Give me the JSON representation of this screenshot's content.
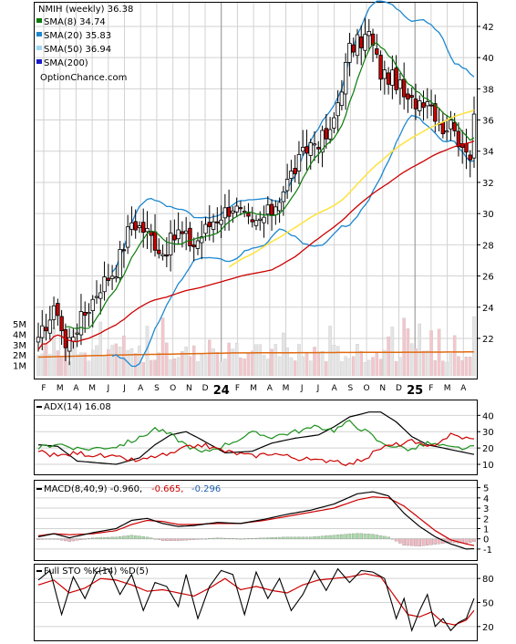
{
  "colors": {
    "bull": "#ffffff",
    "bear": "#cc0000",
    "up_volume": "#e4e4e4",
    "down_volume": "#f4c6cc",
    "sma8": "#0b7a0b",
    "sma20": "#1e88d0",
    "sma50": "#ffe23c",
    "sma200": "#cc0000",
    "vol_sma": "#e06a10",
    "adx": "#000000",
    "plus_di": "#1a8f1a",
    "minus_di": "#cc0000",
    "macd": "#000000",
    "macd_signal": "#cc0000",
    "hist_pos": "#a8dca8",
    "hist_neg": "#f5b8c2",
    "sto_k": "#000000",
    "sto_d": "#cc0000",
    "grid": "#d2d2d2",
    "year_line": "#8c8c8c"
  },
  "chart_data": [
    {
      "type": "candlestick",
      "panel": "price",
      "title": "NMIH (weekly) 36.38",
      "credit": "OptionChance.com",
      "legend": [
        {
          "label": "SMA(8) 34.74",
          "color_key": "sma8"
        },
        {
          "label": "SMA(20) 35.83",
          "color_key": "sma20"
        },
        {
          "label": "SMA(50) 36.94",
          "color_key": "sma50"
        },
        {
          "label": "SMA(200)",
          "color_key": "sma200"
        }
      ],
      "ylim": [
        19.6,
        43.4
      ],
      "yticks": [
        "22",
        "24",
        "26",
        "28",
        "30",
        "32",
        "34",
        "36",
        "38",
        "40",
        "42"
      ],
      "ytick_values": [
        22,
        24,
        26,
        28,
        30,
        32,
        34,
        36,
        38,
        40,
        42
      ],
      "x_axis_labels": [
        "F",
        "M",
        "A",
        "M",
        "J",
        "J",
        "A",
        "S",
        "O",
        "N",
        "D",
        "24",
        "F",
        "M",
        "A",
        "M",
        "J",
        "J",
        "A",
        "S",
        "O",
        "N",
        "D",
        "25",
        "F",
        "M",
        "A"
      ],
      "price_waypoints": [
        [
          0,
          21.6
        ],
        [
          2,
          23.0
        ],
        [
          5,
          23.9
        ],
        [
          7,
          21.4
        ],
        [
          9,
          22.4
        ],
        [
          12,
          23.6
        ],
        [
          16,
          25.4
        ],
        [
          20,
          26.5
        ],
        [
          24,
          29.5
        ],
        [
          28,
          28.8
        ],
        [
          32,
          27.5
        ],
        [
          36,
          28.8
        ],
        [
          40,
          28.0
        ],
        [
          45,
          29.6
        ],
        [
          50,
          30.5
        ],
        [
          55,
          29.1
        ],
        [
          60,
          30.2
        ],
        [
          65,
          32.5
        ],
        [
          70,
          34.5
        ],
        [
          75,
          35.0
        ],
        [
          80,
          40.5
        ],
        [
          85,
          41.5
        ],
        [
          88,
          39.0
        ],
        [
          92,
          38.5
        ],
        [
          95,
          37.0
        ],
        [
          100,
          37.5
        ],
        [
          104,
          35.5
        ],
        [
          107,
          35.8
        ],
        [
          109,
          33.7
        ],
        [
          111,
          34.0
        ],
        [
          112,
          36.38
        ]
      ],
      "volume": {
        "ylim": [
          0,
          7.2
        ],
        "ytick_labels": [
          "1M",
          "2M",
          "3M",
          "4M",
          "5M"
        ],
        "ytick_values": [
          1,
          2,
          3,
          4,
          5
        ],
        "sma_level_M": 2.2
      }
    },
    {
      "type": "line",
      "panel": "adx",
      "legend_label": "ADX(14) 16.08",
      "ylim": [
        5,
        48
      ],
      "yticks": [
        "10",
        "20",
        "30",
        "40"
      ],
      "ytick_values": [
        10,
        20,
        30,
        40
      ],
      "series": [
        {
          "color_key": "adx",
          "waypoints": [
            [
              0,
              22
            ],
            [
              5,
              21
            ],
            [
              10,
              12
            ],
            [
              20,
              10
            ],
            [
              26,
              14
            ],
            [
              30,
              22
            ],
            [
              34,
              28
            ],
            [
              38,
              30
            ],
            [
              42,
              25
            ],
            [
              48,
              17
            ],
            [
              55,
              18
            ],
            [
              60,
              23
            ],
            [
              66,
              26
            ],
            [
              72,
              28
            ],
            [
              76,
              33
            ],
            [
              80,
              39
            ],
            [
              85,
              42
            ],
            [
              88,
              42
            ],
            [
              92,
              36
            ],
            [
              96,
              27
            ],
            [
              100,
              22
            ],
            [
              106,
              19
            ],
            [
              112,
              16.08
            ]
          ]
        },
        {
          "color_key": "plus_di",
          "waypoints": [
            [
              0,
              20
            ],
            [
              5,
              23
            ],
            [
              10,
              19
            ],
            [
              20,
              21
            ],
            [
              26,
              26
            ],
            [
              30,
              32
            ],
            [
              34,
              28
            ],
            [
              38,
              22
            ],
            [
              42,
              17
            ],
            [
              48,
              22
            ],
            [
              55,
              29
            ],
            [
              60,
              27
            ],
            [
              66,
              30
            ],
            [
              72,
              33
            ],
            [
              76,
              31
            ],
            [
              80,
              36
            ],
            [
              85,
              29
            ],
            [
              88,
              23
            ],
            [
              92,
              21
            ],
            [
              96,
              19
            ],
            [
              100,
              23
            ],
            [
              106,
              20
            ],
            [
              112,
              20
            ]
          ]
        },
        {
          "color_key": "minus_di",
          "waypoints": [
            [
              0,
              18
            ],
            [
              5,
              15
            ],
            [
              10,
              17
            ],
            [
              20,
              14
            ],
            [
              26,
              12
            ],
            [
              30,
              15
            ],
            [
              34,
              16
            ],
            [
              38,
              20
            ],
            [
              42,
              22
            ],
            [
              48,
              18
            ],
            [
              55,
              15
            ],
            [
              60,
              17
            ],
            [
              66,
              14
            ],
            [
              72,
              12
            ],
            [
              76,
              13
            ],
            [
              80,
              10
            ],
            [
              85,
              15
            ],
            [
              88,
              20
            ],
            [
              92,
              22
            ],
            [
              96,
              24
            ],
            [
              100,
              20
            ],
            [
              106,
              28
            ],
            [
              112,
              25
            ]
          ]
        }
      ]
    },
    {
      "type": "line",
      "panel": "macd",
      "legend_label": "MACD(8,40,9) -0.960, -0.665, -0.296",
      "legend_parts": [
        "MACD(8,40,9) -0.960,",
        "-0.665,",
        "-0.296"
      ],
      "ylim": [
        -1.9,
        5.5
      ],
      "yticks": [
        "-1",
        "0",
        "1",
        "2",
        "3",
        "4",
        "5"
      ],
      "ytick_values": [
        -1,
        0,
        1,
        2,
        3,
        4,
        5
      ],
      "series": [
        {
          "color_key": "macd",
          "waypoints": [
            [
              0,
              0.2
            ],
            [
              4,
              0.5
            ],
            [
              8,
              0.1
            ],
            [
              14,
              0.6
            ],
            [
              20,
              1.0
            ],
            [
              24,
              1.8
            ],
            [
              28,
              2.0
            ],
            [
              32,
              1.5
            ],
            [
              36,
              1.2
            ],
            [
              40,
              1.3
            ],
            [
              46,
              1.6
            ],
            [
              52,
              1.5
            ],
            [
              58,
              1.9
            ],
            [
              64,
              2.4
            ],
            [
              70,
              2.8
            ],
            [
              76,
              3.4
            ],
            [
              82,
              4.4
            ],
            [
              86,
              4.6
            ],
            [
              90,
              4.2
            ],
            [
              94,
              2.5
            ],
            [
              98,
              1.2
            ],
            [
              102,
              0.2
            ],
            [
              106,
              -0.5
            ],
            [
              110,
              -1.0
            ],
            [
              112,
              -0.96
            ]
          ]
        },
        {
          "color_key": "macd_signal",
          "waypoints": [
            [
              0,
              0.3
            ],
            [
              4,
              0.5
            ],
            [
              8,
              0.4
            ],
            [
              14,
              0.5
            ],
            [
              20,
              0.8
            ],
            [
              24,
              1.4
            ],
            [
              28,
              1.8
            ],
            [
              32,
              1.7
            ],
            [
              36,
              1.4
            ],
            [
              40,
              1.4
            ],
            [
              46,
              1.5
            ],
            [
              52,
              1.5
            ],
            [
              58,
              1.8
            ],
            [
              64,
              2.2
            ],
            [
              70,
              2.6
            ],
            [
              76,
              3.0
            ],
            [
              82,
              3.8
            ],
            [
              86,
              4.1
            ],
            [
              90,
              4.0
            ],
            [
              94,
              3.2
            ],
            [
              98,
              2.0
            ],
            [
              102,
              0.8
            ],
            [
              106,
              -0.1
            ],
            [
              110,
              -0.5
            ],
            [
              112,
              -0.665
            ]
          ]
        }
      ]
    },
    {
      "type": "line",
      "panel": "stochastic",
      "legend_label": "Full STO %K(14) %D(5)",
      "ylim": [
        5,
        95
      ],
      "yticks": [
        "20",
        "50",
        "80"
      ],
      "ytick_values": [
        20,
        50,
        80
      ],
      "series": [
        {
          "color_key": "sto_k",
          "waypoints": [
            [
              0,
              78
            ],
            [
              3,
              90
            ],
            [
              6,
              35
            ],
            [
              9,
              82
            ],
            [
              12,
              55
            ],
            [
              15,
              88
            ],
            [
              18,
              92
            ],
            [
              21,
              60
            ],
            [
              24,
              85
            ],
            [
              27,
              40
            ],
            [
              30,
              75
            ],
            [
              33,
              70
            ],
            [
              36,
              45
            ],
            [
              38,
              85
            ],
            [
              41,
              30
            ],
            [
              44,
              70
            ],
            [
              47,
              90
            ],
            [
              50,
              85
            ],
            [
              53,
              35
            ],
            [
              56,
              88
            ],
            [
              59,
              55
            ],
            [
              62,
              80
            ],
            [
              65,
              40
            ],
            [
              68,
              60
            ],
            [
              71,
              90
            ],
            [
              74,
              65
            ],
            [
              77,
              92
            ],
            [
              80,
              75
            ],
            [
              83,
              90
            ],
            [
              86,
              88
            ],
            [
              89,
              80
            ],
            [
              92,
              30
            ],
            [
              94,
              55
            ],
            [
              96,
              15
            ],
            [
              98,
              40
            ],
            [
              100,
              60
            ],
            [
              102,
              20
            ],
            [
              104,
              30
            ],
            [
              106,
              15
            ],
            [
              108,
              25
            ],
            [
              110,
              30
            ],
            [
              112,
              55
            ]
          ]
        },
        {
          "color_key": "sto_d",
          "waypoints": [
            [
              0,
              72
            ],
            [
              4,
              78
            ],
            [
              8,
              62
            ],
            [
              12,
              68
            ],
            [
              16,
              80
            ],
            [
              20,
              78
            ],
            [
              24,
              72
            ],
            [
              28,
              64
            ],
            [
              32,
              66
            ],
            [
              36,
              62
            ],
            [
              40,
              58
            ],
            [
              44,
              68
            ],
            [
              48,
              80
            ],
            [
              52,
              66
            ],
            [
              56,
              70
            ],
            [
              60,
              65
            ],
            [
              64,
              62
            ],
            [
              68,
              72
            ],
            [
              72,
              78
            ],
            [
              76,
              80
            ],
            [
              80,
              82
            ],
            [
              84,
              86
            ],
            [
              88,
              82
            ],
            [
              92,
              55
            ],
            [
              95,
              35
            ],
            [
              98,
              32
            ],
            [
              101,
              38
            ],
            [
              104,
              25
            ],
            [
              107,
              22
            ],
            [
              110,
              28
            ],
            [
              112,
              40
            ]
          ]
        }
      ]
    }
  ]
}
